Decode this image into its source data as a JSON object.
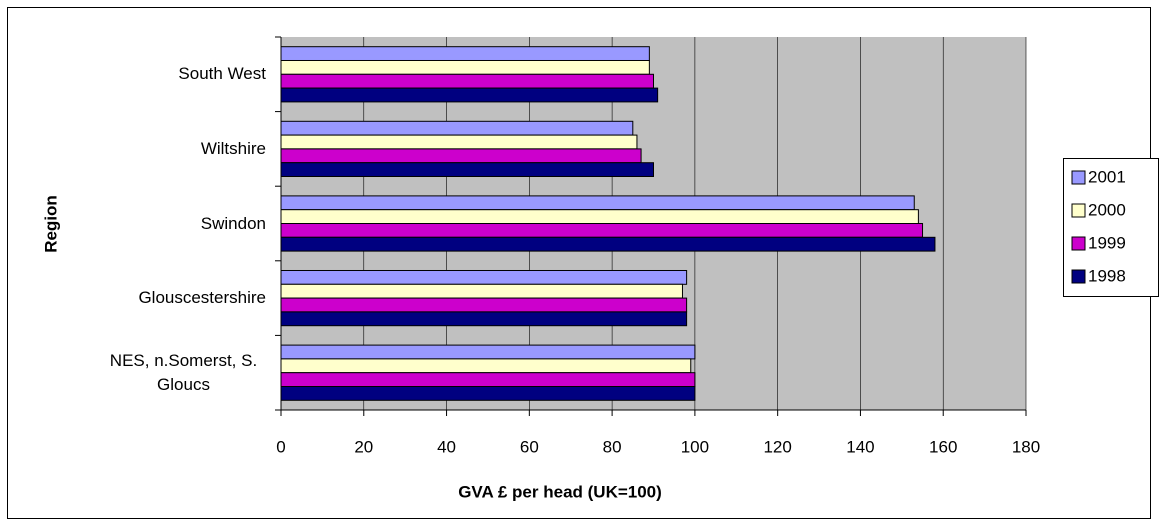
{
  "chart_data": {
    "type": "bar",
    "orientation": "horizontal",
    "xlabel": "GVA £ per head (UK=100)",
    "ylabel": "Region",
    "categories": [
      "South West",
      "Wiltshire",
      "Swindon",
      "Glouscestershire",
      "NES, n.Somerst, S. Gloucs"
    ],
    "series": [
      {
        "name": "2001",
        "color": "#9999ff",
        "values": [
          89,
          85,
          153,
          98,
          100
        ]
      },
      {
        "name": "2000",
        "color": "#ffffcc",
        "values": [
          89,
          86,
          154,
          97,
          99
        ]
      },
      {
        "name": "1999",
        "color": "#cc00cc",
        "values": [
          90,
          87,
          155,
          98,
          100
        ]
      },
      {
        "name": "1998",
        "color": "#000080",
        "values": [
          91,
          90,
          158,
          98,
          100
        ]
      }
    ],
    "xlim": [
      0,
      180
    ],
    "xticks": [
      0,
      20,
      40,
      60,
      80,
      100,
      120,
      140,
      160,
      180
    ],
    "grid": true,
    "legend": "right"
  }
}
